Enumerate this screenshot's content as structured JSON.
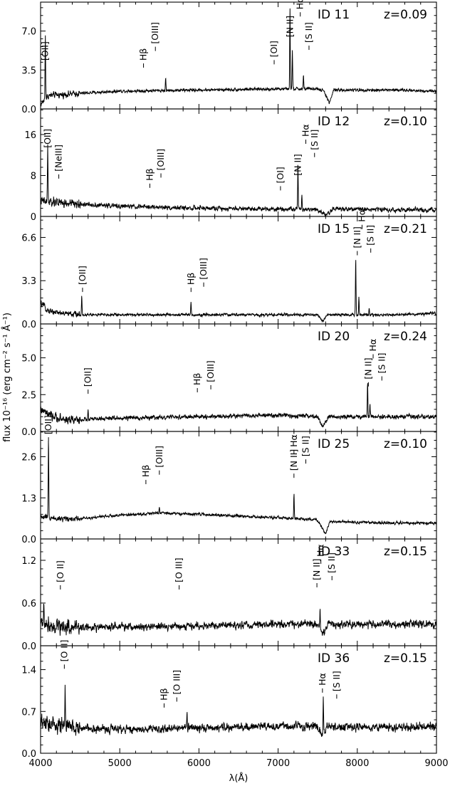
{
  "figure": {
    "ylabel": "flux 10⁻¹⁶ (erg cm⁻² s⁻¹ Å⁻¹)",
    "xlabel": "λ(Å)",
    "x_tick_labels": [
      "4000",
      "5000",
      "6000",
      "7000",
      "8000",
      "9000"
    ]
  },
  "chart_data": [
    {
      "type": "line",
      "id_label": "ID 11",
      "z_label": "z=0.09",
      "xlim": [
        4000,
        9000
      ],
      "ylim": [
        0,
        9.6
      ],
      "yticks": [
        0.0,
        3.5,
        7.0
      ],
      "ytick_labels": [
        "0.0",
        "3.5",
        "7.0"
      ],
      "continuum": [
        [
          4000,
          0.4
        ],
        [
          4100,
          1.2
        ],
        [
          4500,
          1.4
        ],
        [
          5000,
          1.6
        ],
        [
          6000,
          1.7
        ],
        [
          7000,
          1.8
        ],
        [
          7500,
          1.8
        ],
        [
          7580,
          1.6
        ],
        [
          7650,
          0.5
        ],
        [
          7700,
          1.7
        ],
        [
          8500,
          1.7
        ],
        [
          9000,
          1.6
        ]
      ],
      "noise": 0.14,
      "peaks": [
        [
          4060,
          5.8
        ],
        [
          5580,
          1.1
        ],
        [
          7150,
          7.2
        ],
        [
          7180,
          3.5
        ],
        [
          7320,
          1.2
        ]
      ],
      "line_labels": [
        {
          "text": "[OII]",
          "x": 4060,
          "y": 3.9
        },
        {
          "text": "Hβ",
          "x": 5300,
          "y": 3.9
        },
        {
          "text": "[OIII]",
          "x": 5450,
          "y": 5.4
        },
        {
          "text": "[OI]",
          "x": 6950,
          "y": 4.2
        },
        {
          "text": "[N II]",
          "x": 7150,
          "y": 6.0
        },
        {
          "text": "Hα",
          "x": 7280,
          "y": 8.5
        },
        {
          "text": "[S II]",
          "x": 7390,
          "y": 5.5
        }
      ]
    },
    {
      "type": "line",
      "id_label": "ID 12",
      "z_label": "z=0.10",
      "xlim": [
        4000,
        9000
      ],
      "ylim": [
        0,
        21
      ],
      "yticks": [
        0,
        8,
        16
      ],
      "ytick_labels": [
        "0",
        "8",
        "16"
      ],
      "continuum": [
        [
          4000,
          3.0
        ],
        [
          4200,
          2.6
        ],
        [
          4500,
          2.4
        ],
        [
          5000,
          2.0
        ],
        [
          6000,
          1.6
        ],
        [
          7000,
          1.5
        ],
        [
          7500,
          1.4
        ],
        [
          7600,
          0.3
        ],
        [
          7700,
          1.5
        ],
        [
          8500,
          1.3
        ],
        [
          9000,
          1.2
        ]
      ],
      "noise": 0.45,
      "peaks": [
        [
          4090,
          11.0
        ],
        [
          4210,
          1.5
        ],
        [
          7250,
          8.5
        ],
        [
          7300,
          2.5
        ]
      ],
      "line_labels": [
        {
          "text": "[OII]",
          "x": 4090,
          "y": 12.4
        },
        {
          "text": "[NeIII]",
          "x": 4230,
          "y": 7.8
        },
        {
          "text": "Hβ",
          "x": 5380,
          "y": 6.0
        },
        {
          "text": "[OIII]",
          "x": 5520,
          "y": 8.0
        },
        {
          "text": "[OI]",
          "x": 7030,
          "y": 5.5
        },
        {
          "text": "[N II]",
          "x": 7250,
          "y": 7.0
        },
        {
          "text": "Hα",
          "x": 7350,
          "y": 14.6
        },
        {
          "text": "[S II]",
          "x": 7460,
          "y": 12.0
        }
      ]
    },
    {
      "type": "line",
      "id_label": "ID 15",
      "z_label": "z=0.21",
      "xlim": [
        4000,
        9000
      ],
      "ylim": [
        0,
        8.2
      ],
      "yticks": [
        0.0,
        3.3,
        6.6
      ],
      "ytick_labels": [
        "0.0",
        "3.3",
        "6.6"
      ],
      "continuum": [
        [
          4000,
          1.6
        ],
        [
          4100,
          1.0
        ],
        [
          4300,
          0.8
        ],
        [
          4500,
          0.7
        ],
        [
          5000,
          0.7
        ],
        [
          6000,
          0.7
        ],
        [
          7000,
          0.7
        ],
        [
          7500,
          0.7
        ],
        [
          7560,
          0.2
        ],
        [
          7620,
          0.7
        ],
        [
          8500,
          0.7
        ],
        [
          9000,
          0.8
        ]
      ],
      "noise": 0.11,
      "peaks": [
        [
          4520,
          1.5
        ],
        [
          5900,
          1.0
        ],
        [
          7980,
          4.3
        ],
        [
          8020,
          1.3
        ],
        [
          8150,
          0.5
        ]
      ],
      "line_labels": [
        {
          "text": "[OII]",
          "x": 4530,
          "y": 2.6
        },
        {
          "text": "Hβ",
          "x": 5900,
          "y": 2.6
        },
        {
          "text": "[OIII]",
          "x": 6060,
          "y": 3.0
        },
        {
          "text": "[N II]",
          "x": 8000,
          "y": 5.4
        },
        {
          "text": "Hα",
          "x": 8060,
          "y": 7.4
        },
        {
          "text": "[S II]",
          "x": 8170,
          "y": 5.6
        }
      ]
    },
    {
      "type": "line",
      "id_label": "ID 20",
      "z_label": "z=0.24",
      "xlim": [
        4000,
        9000
      ],
      "ylim": [
        0,
        7.3
      ],
      "yticks": [
        0.0,
        2.5,
        5.0
      ],
      "ytick_labels": [
        "0.0",
        "2.5",
        "5.0"
      ],
      "continuum": [
        [
          4000,
          1.5
        ],
        [
          4100,
          1.1
        ],
        [
          4300,
          0.8
        ],
        [
          4500,
          0.8
        ],
        [
          5000,
          0.9
        ],
        [
          6000,
          1.0
        ],
        [
          7000,
          1.1
        ],
        [
          7500,
          1.0
        ],
        [
          7560,
          0.3
        ],
        [
          7640,
          1.0
        ],
        [
          8500,
          1.0
        ],
        [
          9000,
          1.0
        ]
      ],
      "noise": 0.15,
      "peaks": [
        [
          4600,
          0.6
        ],
        [
          8130,
          2.4
        ],
        [
          8160,
          0.8
        ]
      ],
      "line_labels": [
        {
          "text": "[OII]",
          "x": 4600,
          "y": 2.7
        },
        {
          "text": "Hβ",
          "x": 5980,
          "y": 2.8
        },
        {
          "text": "[OIII]",
          "x": 6150,
          "y": 3.0
        },
        {
          "text": "[N II]",
          "x": 8140,
          "y": 3.2
        },
        {
          "text": "Hα",
          "x": 8200,
          "y": 5.1
        },
        {
          "text": "[S II]",
          "x": 8310,
          "y": 3.6
        }
      ]
    },
    {
      "type": "line",
      "id_label": "ID 25",
      "z_label": "z=0.10",
      "xlim": [
        4000,
        9000
      ],
      "ylim": [
        0,
        3.4
      ],
      "yticks": [
        0.0,
        1.3,
        2.6
      ],
      "ytick_labels": [
        "0.0",
        "1.3",
        "2.6"
      ],
      "continuum": [
        [
          4000,
          0.7
        ],
        [
          4200,
          0.65
        ],
        [
          4500,
          0.65
        ],
        [
          5000,
          0.75
        ],
        [
          5500,
          0.82
        ],
        [
          6000,
          0.78
        ],
        [
          6500,
          0.72
        ],
        [
          7000,
          0.67
        ],
        [
          7400,
          0.62
        ],
        [
          7500,
          0.6
        ],
        [
          7600,
          0.15
        ],
        [
          7650,
          0.55
        ],
        [
          8500,
          0.5
        ],
        [
          9000,
          0.5
        ]
      ],
      "noise": 0.045,
      "peaks": [
        [
          4100,
          2.5
        ],
        [
          5500,
          0.2
        ],
        [
          7200,
          0.8
        ]
      ],
      "line_labels": [
        {
          "text": "[OII]",
          "x": 4100,
          "y": 3.15
        },
        {
          "text": "Hβ",
          "x": 5330,
          "y": 1.8
        },
        {
          "text": "[OIII]",
          "x": 5500,
          "y": 2.1
        },
        {
          "text": "[N II]",
          "x": 7200,
          "y": 2.0
        },
        {
          "text": "Hα",
          "x": 7200,
          "y": 2.75
        },
        {
          "text": "[S II]",
          "x": 7350,
          "y": 2.45
        }
      ]
    },
    {
      "type": "line",
      "id_label": "ID 33",
      "z_label": "z=0.15",
      "xlim": [
        4000,
        9000
      ],
      "ylim": [
        0,
        1.5
      ],
      "yticks": [
        0.0,
        0.6,
        1.2
      ],
      "ytick_labels": [
        "0.0",
        "0.6",
        "1.2"
      ],
      "continuum": [
        [
          4000,
          0.32
        ],
        [
          4300,
          0.27
        ],
        [
          4600,
          0.26
        ],
        [
          5000,
          0.26
        ],
        [
          6000,
          0.28
        ],
        [
          7000,
          0.3
        ],
        [
          7500,
          0.3
        ],
        [
          7560,
          0.15
        ],
        [
          7620,
          0.3
        ],
        [
          8500,
          0.3
        ],
        [
          9000,
          0.3
        ]
      ],
      "noise": 0.055,
      "peaks": [
        [
          4040,
          0.35
        ],
        [
          7530,
          0.3
        ]
      ],
      "line_labels": [
        {
          "text": "[O II]",
          "x": 4250,
          "y": 0.82
        },
        {
          "text": "[O III]",
          "x": 5750,
          "y": 0.82
        },
        {
          "text": "[N II]",
          "x": 7490,
          "y": 0.85
        },
        {
          "text": "Hα",
          "x": 7540,
          "y": 1.18
        },
        {
          "text": "[S II]",
          "x": 7680,
          "y": 0.95
        }
      ]
    },
    {
      "type": "line",
      "id_label": "ID 36",
      "z_label": "z=0.15",
      "xlim": [
        4000,
        9000
      ],
      "ylim": [
        0,
        1.8
      ],
      "yticks": [
        0.0,
        0.7,
        1.4
      ],
      "ytick_labels": [
        "0.0",
        "0.7",
        "1.4"
      ],
      "continuum": [
        [
          4000,
          0.5
        ],
        [
          4500,
          0.42
        ],
        [
          5000,
          0.4
        ],
        [
          6000,
          0.42
        ],
        [
          7000,
          0.45
        ],
        [
          7500,
          0.45
        ],
        [
          7560,
          0.3
        ],
        [
          7620,
          0.45
        ],
        [
          8500,
          0.43
        ],
        [
          9000,
          0.45
        ]
      ],
      "noise": 0.07,
      "peaks": [
        [
          4310,
          0.7
        ],
        [
          5850,
          0.3
        ],
        [
          7570,
          0.55
        ]
      ],
      "line_labels": [
        {
          "text": "[O II]",
          "x": 4300,
          "y": 1.45
        },
        {
          "text": "Hβ",
          "x": 5560,
          "y": 0.8
        },
        {
          "text": "[O III]",
          "x": 5720,
          "y": 0.9
        },
        {
          "text": "Hα",
          "x": 7560,
          "y": 1.05
        },
        {
          "text": "[S II]",
          "x": 7740,
          "y": 0.95
        }
      ]
    }
  ]
}
